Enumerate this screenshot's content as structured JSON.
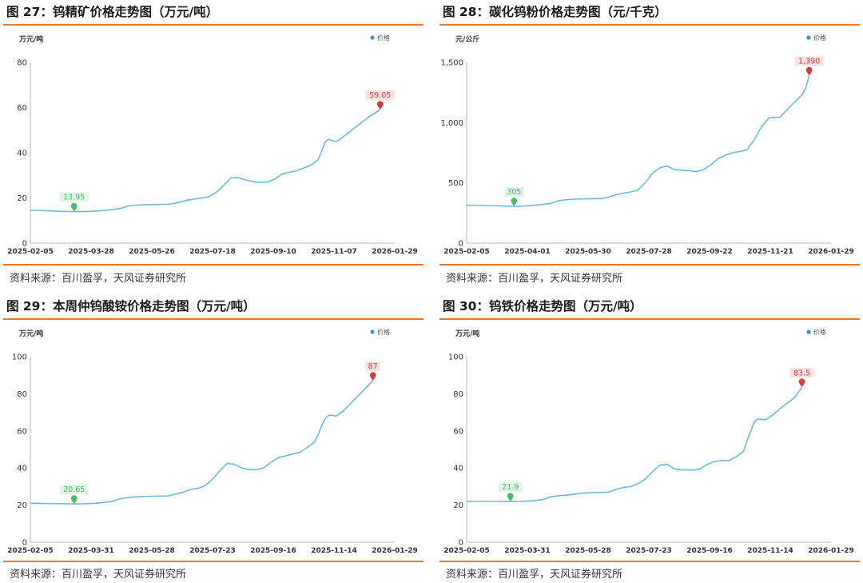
{
  "panels": [
    {
      "title": "图 27：钨精矿价格走势图（万元/吨）",
      "source": "资料来源：百川盈孚，天风证券研究所",
      "chart_data": {
        "type": "line",
        "ylabel": "万元/吨",
        "legend": "价格",
        "legend_position": "top-right",
        "ylim": [
          0,
          80
        ],
        "yticks": [
          0,
          20,
          40,
          60,
          80
        ],
        "ytick_labels": [
          "0",
          "20",
          "40",
          "60",
          "80"
        ],
        "xtick_labels": [
          "2025-02-05",
          "2025-03-28",
          "2025-05-26",
          "2025-07-18",
          "2025-09-10",
          "2025-11-07",
          "2026-01-29"
        ],
        "points": [
          [
            0,
            14.5
          ],
          [
            5,
            14.3
          ],
          [
            10,
            14.0
          ],
          [
            12,
            13.95
          ],
          [
            15,
            14.0
          ],
          [
            18,
            14.2
          ],
          [
            22,
            14.7
          ],
          [
            25,
            15.5
          ],
          [
            27,
            16.5
          ],
          [
            29,
            16.8
          ],
          [
            31,
            17.0
          ],
          [
            34,
            17.1
          ],
          [
            38,
            17.2
          ],
          [
            40,
            17.8
          ],
          [
            42,
            18.5
          ],
          [
            43,
            19.0
          ],
          [
            45,
            19.5
          ],
          [
            47,
            20.0
          ],
          [
            49,
            20.5
          ],
          [
            51,
            22.5
          ],
          [
            53,
            25.5
          ],
          [
            55,
            28.8
          ],
          [
            57,
            29.0
          ],
          [
            59,
            28.0
          ],
          [
            61,
            27.3
          ],
          [
            63,
            26.8
          ],
          [
            65,
            27.0
          ],
          [
            67,
            28.2
          ],
          [
            69,
            30.5
          ],
          [
            71,
            31.4
          ],
          [
            73,
            32.0
          ],
          [
            75,
            33.2
          ],
          [
            77,
            34.5
          ],
          [
            79,
            37.0
          ],
          [
            80,
            41.0
          ],
          [
            81,
            45.0
          ],
          [
            82,
            46.0
          ],
          [
            83,
            45.3
          ],
          [
            84,
            45.0
          ],
          [
            85,
            46.0
          ],
          [
            87,
            48.5
          ],
          [
            89,
            51.0
          ],
          [
            91,
            53.5
          ],
          [
            93,
            56.0
          ],
          [
            95,
            58.0
          ],
          [
            96,
            59.05
          ]
        ],
        "markers": [
          {
            "label": "13.95",
            "x": 12,
            "y": 13.95,
            "kind": "min",
            "color": "#3fbf5f"
          },
          {
            "label": "59.05",
            "x": 96,
            "y": 59.05,
            "kind": "max",
            "color": "#d93a3a"
          }
        ],
        "line_color": "#6db7e3"
      }
    },
    {
      "title": "图 28：碳化钨粉价格走势图（元/千克）",
      "source": "资料来源：百川盈孚，天风证券研究所",
      "chart_data": {
        "type": "line",
        "ylabel": "元/公斤",
        "legend": "价格",
        "legend_position": "top-right",
        "ylim": [
          0,
          1500
        ],
        "yticks": [
          0,
          500,
          1000,
          1500
        ],
        "ytick_labels": [
          "0",
          "500",
          "1,000",
          "1,500"
        ],
        "xtick_labels": [
          "2025-02-05",
          "2025-04-01",
          "2025-05-30",
          "2025-07-28",
          "2025-09-22",
          "2025-11-21",
          "2026-01-29"
        ],
        "points": [
          [
            0,
            315
          ],
          [
            6,
            312
          ],
          [
            10,
            308
          ],
          [
            13,
            305
          ],
          [
            16,
            308
          ],
          [
            20,
            318
          ],
          [
            23,
            330
          ],
          [
            25,
            350
          ],
          [
            27,
            360
          ],
          [
            30,
            365
          ],
          [
            33,
            368
          ],
          [
            37,
            370
          ],
          [
            39,
            382
          ],
          [
            41,
            400
          ],
          [
            43,
            415
          ],
          [
            45,
            425
          ],
          [
            47,
            440
          ],
          [
            49,
            500
          ],
          [
            51,
            580
          ],
          [
            53,
            625
          ],
          [
            55,
            640
          ],
          [
            57,
            610
          ],
          [
            59,
            605
          ],
          [
            61,
            600
          ],
          [
            63,
            595
          ],
          [
            65,
            610
          ],
          [
            67,
            650
          ],
          [
            69,
            700
          ],
          [
            71,
            730
          ],
          [
            73,
            750
          ],
          [
            75,
            760
          ],
          [
            77,
            775
          ],
          [
            79,
            860
          ],
          [
            81,
            970
          ],
          [
            83,
            1040
          ],
          [
            86,
            1045
          ],
          [
            88,
            1110
          ],
          [
            90,
            1170
          ],
          [
            92,
            1230
          ],
          [
            93,
            1280
          ],
          [
            94,
            1390
          ]
        ],
        "markers": [
          {
            "label": "305",
            "x": 13,
            "y": 305,
            "kind": "min",
            "color": "#3fbf5f"
          },
          {
            "label": "1,390",
            "x": 94,
            "y": 1390,
            "kind": "max",
            "color": "#d93a3a"
          }
        ],
        "line_color": "#6db7e3"
      }
    },
    {
      "title": "图 29：本周仲钨酸铵价格走势图（万元/吨）",
      "source": "资料来源：百川盈孚，天风证券研究所",
      "chart_data": {
        "type": "line",
        "ylabel": "万元/吨",
        "legend": "价格",
        "legend_position": "top-right",
        "ylim": [
          0,
          100
        ],
        "yticks": [
          0,
          20,
          40,
          60,
          80,
          100
        ],
        "ytick_labels": [
          "0",
          "20",
          "40",
          "60",
          "80",
          "100"
        ],
        "xtick_labels": [
          "2025-02-05",
          "2025-03-31",
          "2025-05-28",
          "2025-07-23",
          "2025-09-16",
          "2025-11-14",
          "2026-01-29"
        ],
        "points": [
          [
            0,
            21.0
          ],
          [
            6,
            20.8
          ],
          [
            10,
            20.7
          ],
          [
            12,
            20.65
          ],
          [
            15,
            20.7
          ],
          [
            18,
            21.0
          ],
          [
            22,
            21.8
          ],
          [
            25,
            23.5
          ],
          [
            27,
            24.2
          ],
          [
            30,
            24.6
          ],
          [
            34,
            24.8
          ],
          [
            38,
            25.0
          ],
          [
            40,
            26.0
          ],
          [
            42,
            27.0
          ],
          [
            44,
            28.5
          ],
          [
            46,
            29.0
          ],
          [
            48,
            30.5
          ],
          [
            50,
            34.0
          ],
          [
            52,
            38.5
          ],
          [
            54,
            42.5
          ],
          [
            56,
            42.0
          ],
          [
            58,
            40.0
          ],
          [
            60,
            39.2
          ],
          [
            62,
            39.0
          ],
          [
            64,
            40.0
          ],
          [
            66,
            43.0
          ],
          [
            68,
            45.5
          ],
          [
            70,
            46.5
          ],
          [
            72,
            47.5
          ],
          [
            74,
            48.5
          ],
          [
            76,
            51.0
          ],
          [
            78,
            54.0
          ],
          [
            79,
            58.0
          ],
          [
            80,
            63.0
          ],
          [
            81,
            67.0
          ],
          [
            82,
            68.5
          ],
          [
            84,
            68.0
          ],
          [
            86,
            71.0
          ],
          [
            88,
            75.0
          ],
          [
            90,
            79.0
          ],
          [
            92,
            83.0
          ],
          [
            94,
            87.0
          ]
        ],
        "markers": [
          {
            "label": "20.65",
            "x": 12,
            "y": 20.65,
            "kind": "min",
            "color": "#3fbf5f"
          },
          {
            "label": "87",
            "x": 94,
            "y": 87,
            "kind": "max",
            "color": "#d93a3a"
          }
        ],
        "line_color": "#6db7e3"
      }
    },
    {
      "title": "图 30：钨铁价格走势图（万元/吨）",
      "source": "资料来源：百川盈孚，天风证券研究所",
      "chart_data": {
        "type": "line",
        "ylabel": "万元/吨",
        "legend": "价格",
        "legend_position": "top-right",
        "ylim": [
          0,
          100
        ],
        "yticks": [
          0,
          20,
          40,
          60,
          80,
          100
        ],
        "ytick_labels": [
          "0",
          "20",
          "40",
          "60",
          "80",
          "100"
        ],
        "xtick_labels": [
          "2025-02-05",
          "2025-03-31",
          "2025-05-28",
          "2025-07-23",
          "2025-09-16",
          "2025-11-14",
          "2026-01-29"
        ],
        "points": [
          [
            0,
            22.0
          ],
          [
            6,
            22.0
          ],
          [
            10,
            21.95
          ],
          [
            12,
            21.9
          ],
          [
            15,
            22.0
          ],
          [
            18,
            22.3
          ],
          [
            21,
            23.0
          ],
          [
            23,
            24.5
          ],
          [
            25,
            25.0
          ],
          [
            28,
            25.5
          ],
          [
            30,
            26.0
          ],
          [
            32,
            26.5
          ],
          [
            36,
            26.8
          ],
          [
            39,
            27.0
          ],
          [
            41,
            28.5
          ],
          [
            43,
            29.5
          ],
          [
            45,
            30.0
          ],
          [
            47,
            31.5
          ],
          [
            49,
            34.0
          ],
          [
            51,
            38.0
          ],
          [
            53,
            41.5
          ],
          [
            55,
            42.0
          ],
          [
            57,
            39.5
          ],
          [
            59,
            39.0
          ],
          [
            62,
            38.8
          ],
          [
            64,
            39.5
          ],
          [
            66,
            42.0
          ],
          [
            68,
            43.5
          ],
          [
            70,
            44.0
          ],
          [
            72,
            44.0
          ],
          [
            74,
            46.0
          ],
          [
            76,
            49.0
          ],
          [
            77,
            55.0
          ],
          [
            78,
            60.0
          ],
          [
            79,
            65.0
          ],
          [
            80,
            66.5
          ],
          [
            82,
            66.0
          ],
          [
            84,
            68.5
          ],
          [
            86,
            72.0
          ],
          [
            88,
            75.0
          ],
          [
            90,
            78.0
          ],
          [
            92,
            83.5
          ]
        ],
        "markers": [
          {
            "label": "21.9",
            "x": 12,
            "y": 21.9,
            "kind": "min",
            "color": "#3fbf5f"
          },
          {
            "label": "83.5",
            "x": 92,
            "y": 83.5,
            "kind": "max",
            "color": "#d93a3a"
          }
        ],
        "line_color": "#6db7e3"
      }
    }
  ]
}
